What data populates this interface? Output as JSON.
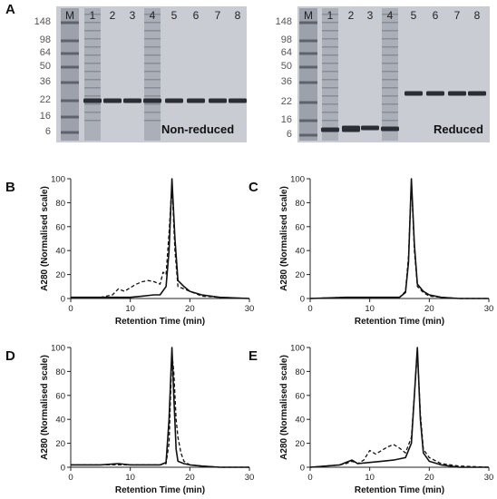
{
  "figure": {
    "panel_A": {
      "letter": "A",
      "gels": [
        {
          "caption": "Non-reduced",
          "lanes": [
            "M",
            "1",
            "2",
            "3",
            "4",
            "5",
            "6",
            "7",
            "8"
          ],
          "markers": [
            "148",
            "98",
            "64",
            "50",
            "36",
            "22",
            "16",
            "6"
          ]
        },
        {
          "caption": "Reduced",
          "lanes": [
            "M",
            "1",
            "2",
            "3",
            "4",
            "5",
            "6",
            "7",
            "8"
          ],
          "markers": [
            "148",
            "98",
            "64",
            "50",
            "36",
            "22",
            "16",
            "6"
          ]
        }
      ]
    }
  },
  "chart_data": [
    {
      "panel": "B",
      "type": "line",
      "xlabel": "Retention Time (min)",
      "ylabel": "A280 (Normalised scale)",
      "xlim": [
        0,
        30
      ],
      "ylim": [
        0,
        100
      ],
      "xticks": [
        "0",
        "10",
        "20",
        "30"
      ],
      "yticks": [
        "0",
        "20",
        "40",
        "60",
        "80",
        "100"
      ],
      "series": [
        {
          "style": "solid",
          "x": [
            0,
            5,
            8,
            10,
            12,
            14,
            15,
            16,
            16.5,
            17,
            17.5,
            18,
            19,
            20,
            22,
            25,
            30
          ],
          "y": [
            1,
            1,
            1,
            1,
            2,
            3,
            3,
            10,
            40,
            100,
            50,
            15,
            10,
            6,
            3,
            1,
            0
          ]
        },
        {
          "style": "dashed",
          "x": [
            0,
            5,
            7,
            8,
            9,
            10,
            11,
            12,
            13,
            14,
            15,
            15.5,
            16,
            16.5,
            17,
            17.5,
            18,
            19,
            20,
            21,
            22,
            25,
            30
          ],
          "y": [
            1,
            1,
            3,
            8,
            6,
            9,
            12,
            14,
            15,
            14,
            12,
            22,
            20,
            55,
            95,
            40,
            10,
            8,
            6,
            4,
            2,
            1,
            0
          ]
        }
      ]
    },
    {
      "panel": "C",
      "type": "line",
      "xlabel": "Retention Time (min)",
      "ylabel": "A280 (Normalised scale)",
      "xlim": [
        0,
        30
      ],
      "ylim": [
        0,
        100
      ],
      "xticks": [
        "0",
        "10",
        "20",
        "30"
      ],
      "yticks": [
        "0",
        "20",
        "40",
        "60",
        "80",
        "100"
      ],
      "series": [
        {
          "style": "solid",
          "x": [
            0,
            6,
            10,
            15,
            16,
            16.5,
            17,
            17.5,
            18,
            19,
            20,
            22,
            25,
            30
          ],
          "y": [
            0,
            1,
            1,
            1,
            5,
            30,
            100,
            45,
            12,
            6,
            3,
            1,
            0,
            0
          ]
        },
        {
          "style": "dashed",
          "x": [
            0,
            6,
            10,
            15,
            16,
            16.5,
            17,
            17.5,
            18,
            19,
            20,
            22,
            25,
            30
          ],
          "y": [
            0,
            1,
            1,
            1,
            6,
            35,
            98,
            40,
            10,
            5,
            2,
            1,
            0,
            0
          ]
        }
      ]
    },
    {
      "panel": "D",
      "type": "line",
      "xlabel": "Retention Time (min)",
      "ylabel": "A280 (Normalised scale)",
      "xlim": [
        0,
        30
      ],
      "ylim": [
        0,
        100
      ],
      "xticks": [
        "0",
        "10",
        "20",
        "30"
      ],
      "yticks": [
        "0",
        "20",
        "40",
        "60",
        "80",
        "100"
      ],
      "series": [
        {
          "style": "solid",
          "x": [
            0,
            5,
            8,
            10,
            13,
            15,
            16,
            16.5,
            17,
            17.3,
            17.7,
            18,
            19,
            20,
            22,
            25,
            30
          ],
          "y": [
            2,
            2,
            3,
            2,
            2,
            2,
            4,
            40,
            100,
            60,
            15,
            5,
            3,
            2,
            1,
            0,
            0
          ]
        },
        {
          "style": "dashed",
          "x": [
            0,
            5,
            8,
            10,
            13,
            15,
            16,
            16.5,
            17,
            17.3,
            17.7,
            18,
            18.5,
            19,
            20,
            22,
            25,
            30
          ],
          "y": [
            2,
            2,
            2,
            2,
            2,
            2,
            3,
            20,
            95,
            80,
            40,
            25,
            12,
            5,
            2,
            1,
            0,
            0
          ]
        }
      ]
    },
    {
      "panel": "E",
      "type": "line",
      "xlabel": "Retention Time (min)",
      "ylabel": "A280 (Normalised scale)",
      "xlim": [
        0,
        30
      ],
      "ylim": [
        0,
        100
      ],
      "xticks": [
        "0",
        "10",
        "20",
        "30"
      ],
      "yticks": [
        "0",
        "20",
        "40",
        "60",
        "80",
        "100"
      ],
      "series": [
        {
          "style": "solid",
          "x": [
            0,
            5,
            6,
            7,
            8,
            10,
            12,
            14,
            16,
            17,
            17.5,
            18,
            18.5,
            19,
            20,
            22,
            25,
            30
          ],
          "y": [
            0,
            2,
            4,
            6,
            3,
            4,
            5,
            6,
            8,
            20,
            60,
            100,
            40,
            12,
            5,
            2,
            0,
            0
          ]
        },
        {
          "style": "dashed",
          "x": [
            0,
            5,
            6,
            7,
            8,
            9,
            10,
            11,
            12,
            13,
            14,
            15,
            16,
            17,
            17.5,
            18,
            18.5,
            19,
            20,
            22,
            25,
            30
          ],
          "y": [
            0,
            2,
            3,
            5,
            3,
            6,
            14,
            11,
            14,
            17,
            19,
            16,
            12,
            25,
            60,
            97,
            45,
            15,
            8,
            3,
            1,
            0
          ]
        }
      ]
    }
  ]
}
